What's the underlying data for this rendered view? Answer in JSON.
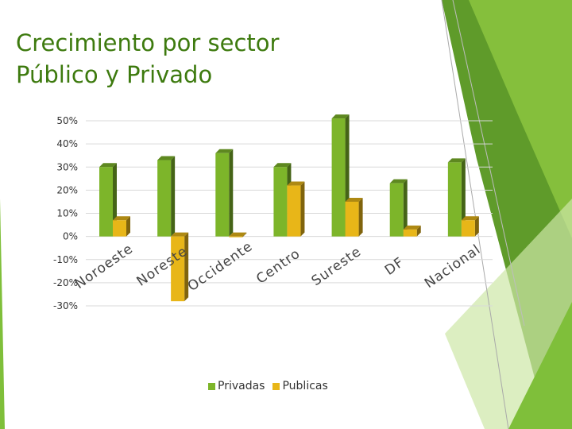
{
  "slide": {
    "title": "Crecimiento por sector\nPúblico y Privado"
  },
  "theme": {
    "accent_dark": "#3d7a0e",
    "accent_mid": "#6aa52f",
    "accent_light": "#9bd03a"
  },
  "chart_data": {
    "type": "bar",
    "style": "3d-clustered-column",
    "categories": [
      "Noroeste",
      "Noreste",
      "Occidente",
      "Centro",
      "Sureste",
      "DF",
      "Nacional"
    ],
    "series": [
      {
        "name": "Privadas",
        "color": "#7db52a",
        "values": [
          0.3,
          0.33,
          0.36,
          0.3,
          0.51,
          0.23,
          0.32
        ]
      },
      {
        "name": "Publicas",
        "color": "#e8b618",
        "values": [
          0.07,
          -0.28,
          0.0,
          0.22,
          0.15,
          0.03,
          0.07
        ]
      }
    ],
    "yticks": [
      "50%",
      "40%",
      "30%",
      "20%",
      "10%",
      "0%",
      "-10%",
      "-20%",
      "-30%"
    ],
    "ylim": [
      -0.3,
      0.5
    ],
    "grid": true,
    "legend": "bottom"
  }
}
